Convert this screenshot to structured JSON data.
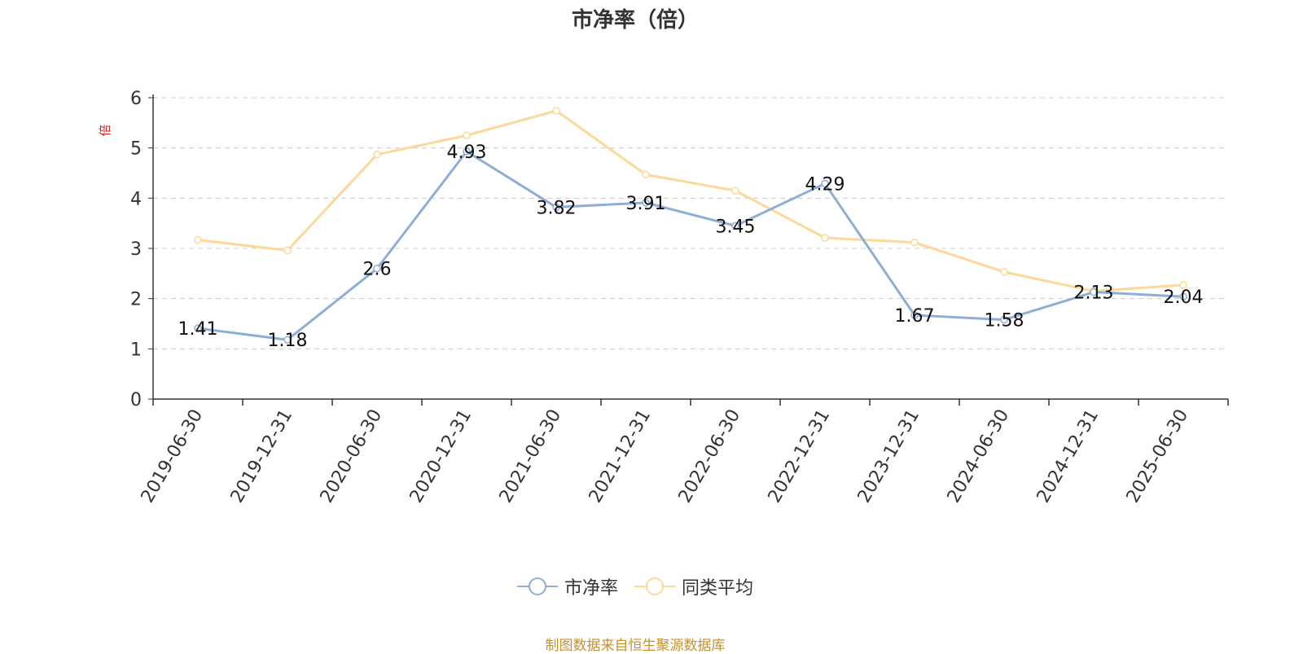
{
  "chart_data": {
    "type": "line",
    "title": "市净率（倍）",
    "ylabel": "倍",
    "xlabel": "",
    "ylim": [
      0,
      6
    ],
    "yticks": [
      0,
      1,
      2,
      3,
      4,
      5,
      6
    ],
    "grid": true,
    "legend_position": "bottom",
    "categories": [
      "2019-06-30",
      "2019-12-31",
      "2020-06-30",
      "2020-12-31",
      "2021-06-30",
      "2021-12-31",
      "2022-06-30",
      "2022-12-31",
      "2023-12-31",
      "2024-06-30",
      "2024-12-31",
      "2025-06-30"
    ],
    "series": [
      {
        "name": "市净率",
        "color": "#8eaed8",
        "show_labels": true,
        "values": [
          1.41,
          1.18,
          2.6,
          4.93,
          3.82,
          3.91,
          3.45,
          4.29,
          1.67,
          1.58,
          2.13,
          2.04
        ]
      },
      {
        "name": "同类平均",
        "color": "#fcd899",
        "show_labels": false,
        "values": [
          3.17,
          2.96,
          4.87,
          5.25,
          5.74,
          4.47,
          4.15,
          3.21,
          3.12,
          2.53,
          2.15,
          2.27
        ]
      }
    ]
  },
  "colors": {
    "ylabel": "#e02020",
    "footer": "#c8912f",
    "grid": "#cccccc",
    "axis": "#333333"
  },
  "footer": "制图数据来自恒生聚源数据库"
}
